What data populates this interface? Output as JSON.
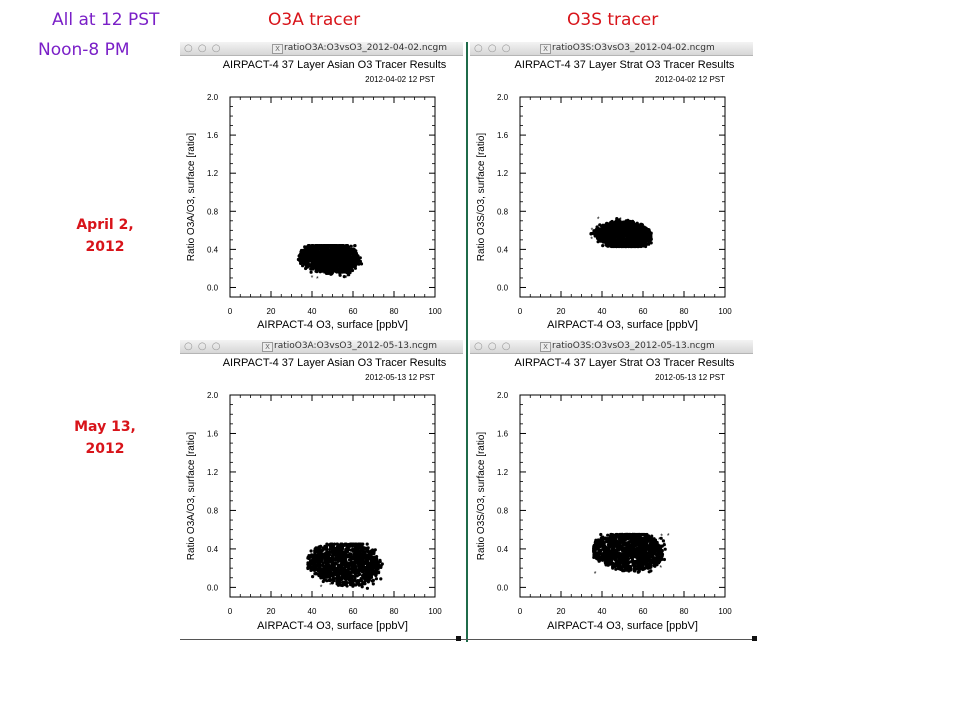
{
  "header": {
    "time_label": "All at 12 PST",
    "window_label": "Noon-8 PM",
    "col1_label": "O3A tracer",
    "col2_label": "O3S tracer"
  },
  "rows": [
    {
      "line1": "April 2,",
      "line2": "2012"
    },
    {
      "line1": "May 13,",
      "line2": "2012"
    }
  ],
  "window": {
    "dots": "○ ○ ○",
    "close_glyph": "X"
  },
  "colors": {
    "background": "#ffffff",
    "header_purple": "#7a1fc7",
    "header_red": "#d8141a",
    "marker": "#000000"
  },
  "chart_data": [
    {
      "type": "scatter",
      "window_title": "ratioO3A:O3vsO3_2012-04-02.ncgm",
      "title": "AIRPACT-4 37 Layer Asian O3 Tracer Results",
      "subtitle": "2012-04-02 12 PST",
      "xlabel": "AIRPACT-4 O3, surface [ppbV]",
      "ylabel": "Ratio O3A/O3, surface [ratio]",
      "xlim": [
        0,
        100
      ],
      "ylim": [
        -0.1,
        2.0
      ],
      "xticks": [
        0,
        20,
        40,
        60,
        80,
        100
      ],
      "yticks": [
        0.0,
        0.4,
        0.8,
        1.2,
        1.6,
        2.0
      ],
      "marker": "*",
      "cluster": {
        "x_center": 48,
        "y_center": 0.31,
        "x_range": [
          33,
          65
        ],
        "y_range": [
          0.09,
          0.44
        ]
      }
    },
    {
      "type": "scatter",
      "window_title": "ratioO3S:O3vsO3_2012-04-02.ncgm",
      "title": "AIRPACT-4 37 Layer Strat O3 Tracer Results",
      "subtitle": "2012-04-02 12 PST",
      "xlabel": "AIRPACT-4 O3, surface [ppbV]",
      "ylabel": "Ratio O3S/O3, surface [ratio]",
      "xlim": [
        0,
        100
      ],
      "ylim": [
        -0.1,
        2.0
      ],
      "xticks": [
        0,
        20,
        40,
        60,
        80,
        100
      ],
      "yticks": [
        0.0,
        0.4,
        0.8,
        1.2,
        1.6,
        2.0
      ],
      "marker": "*",
      "cluster": {
        "x_center": 50,
        "y_center": 0.55,
        "x_range": [
          34,
          64
        ],
        "y_range": [
          0.43,
          0.73
        ]
      }
    },
    {
      "type": "scatter",
      "window_title": "ratioO3A:O3vsO3_2012-05-13.ncgm",
      "title": "AIRPACT-4 37 Layer Asian O3 Tracer Results",
      "subtitle": "2012-05-13 12 PST",
      "xlabel": "AIRPACT-4 O3, surface [ppbV]",
      "ylabel": "Ratio O3A/O3, surface [ratio]",
      "xlim": [
        0,
        100
      ],
      "ylim": [
        -0.1,
        2.0
      ],
      "xticks": [
        0,
        20,
        40,
        60,
        80,
        100
      ],
      "yticks": [
        0.0,
        0.4,
        0.8,
        1.2,
        1.6,
        2.0
      ],
      "marker": "*",
      "cluster": {
        "x_center": 55,
        "y_center": 0.25,
        "x_range": [
          38,
          76
        ],
        "y_range": [
          -0.02,
          0.45
        ]
      }
    },
    {
      "type": "scatter",
      "window_title": "ratioO3S:O3vsO3_2012-05-13.ncgm",
      "title": "AIRPACT-4 37 Layer Strat O3 Tracer Results",
      "subtitle": "2012-05-13 12 PST",
      "xlabel": "AIRPACT-4 O3, surface [ppbV]",
      "ylabel": "Ratio O3S/O3, surface [ratio]",
      "xlim": [
        0,
        100
      ],
      "ylim": [
        -0.1,
        2.0
      ],
      "xticks": [
        0,
        20,
        40,
        60,
        80,
        100
      ],
      "yticks": [
        0.0,
        0.4,
        0.8,
        1.2,
        1.6,
        2.0
      ],
      "marker": "*",
      "cluster": {
        "x_center": 52,
        "y_center": 0.38,
        "x_range": [
          36,
          74
        ],
        "y_range": [
          0.13,
          0.55
        ]
      }
    }
  ]
}
